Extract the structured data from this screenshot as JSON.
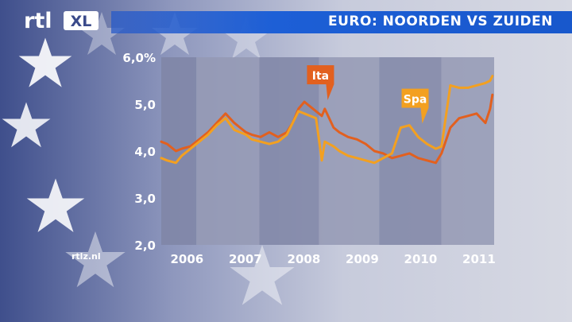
{
  "logo": {
    "text": "rtl",
    "badge": "XL"
  },
  "header": {
    "title": "EURO: NOORDEN VS ZUIDEN"
  },
  "watermark": "rtlz.nl",
  "chart_data": {
    "type": "line",
    "title": "",
    "xlabel": "",
    "ylabel": "",
    "xlim": [
      2005.75,
      2011.45
    ],
    "ylim": [
      2.0,
      6.0
    ],
    "yticks": [
      {
        "value": 2.0,
        "label": "2,0"
      },
      {
        "value": 3.0,
        "label": "3,0"
      },
      {
        "value": 4.0,
        "label": "4,0"
      },
      {
        "value": 5.0,
        "label": "5,0"
      },
      {
        "value": 6.0,
        "label": "6,0%"
      }
    ],
    "xticks": [
      {
        "value": 2006,
        "label": "2006"
      },
      {
        "value": 2007,
        "label": "2007"
      },
      {
        "value": 2008,
        "label": "2008"
      },
      {
        "value": 2009,
        "label": "2009"
      },
      {
        "value": 2010,
        "label": "2010"
      },
      {
        "value": 2011,
        "label": "2011"
      }
    ],
    "bands": [
      2005.75,
      2006.35,
      2007.43,
      2008.45,
      2009.48,
      2010.55,
      2011.45
    ],
    "grid": false,
    "series": [
      {
        "name": "Ita",
        "color": "#e2601f",
        "x": [
          2005.75,
          2005.85,
          2006.0,
          2006.1,
          2006.25,
          2006.4,
          2006.55,
          2006.7,
          2006.85,
          2007.0,
          2007.1,
          2007.2,
          2007.3,
          2007.45,
          2007.6,
          2007.75,
          2007.9,
          2008.0,
          2008.1,
          2008.2,
          2008.3,
          2008.4,
          2008.5,
          2008.55,
          2008.7,
          2008.8,
          2008.95,
          2009.1,
          2009.25,
          2009.4,
          2009.55,
          2009.7,
          2009.85,
          2010.0,
          2010.15,
          2010.3,
          2010.45,
          2010.55,
          2010.7,
          2010.85,
          2011.0,
          2011.15,
          2011.3,
          2011.38,
          2011.42
        ],
        "values": [
          4.2,
          4.15,
          4.0,
          4.05,
          4.1,
          4.25,
          4.4,
          4.6,
          4.8,
          4.6,
          4.5,
          4.4,
          4.35,
          4.3,
          4.4,
          4.3,
          4.4,
          4.6,
          4.9,
          5.05,
          4.95,
          4.85,
          4.75,
          4.9,
          4.5,
          4.4,
          4.3,
          4.25,
          4.15,
          4.0,
          3.95,
          3.85,
          3.9,
          3.95,
          3.85,
          3.8,
          3.75,
          3.95,
          4.5,
          4.7,
          4.75,
          4.8,
          4.6,
          4.9,
          5.2
        ]
      },
      {
        "name": "Spa",
        "color": "#f3a020",
        "x": [
          2005.75,
          2005.85,
          2006.0,
          2006.1,
          2006.25,
          2006.4,
          2006.55,
          2006.7,
          2006.85,
          2007.0,
          2007.1,
          2007.2,
          2007.3,
          2007.45,
          2007.6,
          2007.75,
          2007.9,
          2008.0,
          2008.1,
          2008.2,
          2008.3,
          2008.4,
          2008.5,
          2008.55,
          2008.7,
          2008.8,
          2008.95,
          2009.1,
          2009.25,
          2009.4,
          2009.55,
          2009.7,
          2009.85,
          2010.0,
          2010.15,
          2010.3,
          2010.45,
          2010.55,
          2010.7,
          2010.85,
          2011.0,
          2011.15,
          2011.3,
          2011.38,
          2011.42
        ],
        "values": [
          3.85,
          3.8,
          3.75,
          3.9,
          4.05,
          4.2,
          4.35,
          4.55,
          4.7,
          4.45,
          4.4,
          4.35,
          4.25,
          4.2,
          4.15,
          4.2,
          4.35,
          4.6,
          4.85,
          4.8,
          4.75,
          4.7,
          3.8,
          4.2,
          4.1,
          4.0,
          3.9,
          3.85,
          3.8,
          3.75,
          3.85,
          3.95,
          4.5,
          4.55,
          4.3,
          4.15,
          4.05,
          4.1,
          5.4,
          5.35,
          5.35,
          5.4,
          5.45,
          5.5,
          5.6
        ]
      }
    ],
    "annotations": [
      {
        "text": "Ita",
        "series": "Ita",
        "x": 2008.3,
        "y": 5.05
      },
      {
        "text": "Spa",
        "series": "Spa",
        "x": 2009.92,
        "y": 4.55
      }
    ]
  }
}
